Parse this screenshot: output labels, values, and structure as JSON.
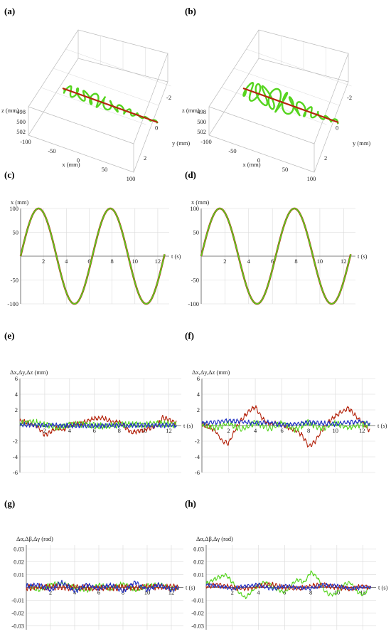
{
  "panel_labels": [
    "(a)",
    "(b)",
    "(c)",
    "(d)",
    "(e)",
    "(f)",
    "(g)",
    "(h)"
  ],
  "colors": {
    "green": "#55d41e",
    "red": "#b5260f",
    "blue": "#1f2fc4",
    "olive": "#8a7a1c",
    "grid": "#d8d8d8",
    "axis": "#555555"
  },
  "chart_data": [
    {
      "panel": "(a)",
      "type": "line",
      "xlabel": "x (mm)",
      "ylabel": "y (mm)",
      "zlabel": "z (mm)",
      "x_ticks": [
        "-100",
        "-50",
        "0",
        "50",
        "100"
      ],
      "y_ticks": [
        "-2",
        "0",
        "2"
      ],
      "z_ticks": [
        "498",
        "500",
        "502"
      ],
      "series": [
        {
          "color": "green",
          "x": [
            -100,
            100
          ],
          "y": [
            0,
            0
          ],
          "z": [
            500,
            500
          ]
        },
        {
          "color": "red",
          "x": [
            -100,
            100
          ],
          "y": [
            0,
            0
          ],
          "z": [
            500,
            500
          ]
        }
      ]
    },
    {
      "panel": "(b)",
      "type": "line",
      "xlabel": "x (mm)",
      "ylabel": "y (mm)",
      "zlabel": "z (mm)",
      "x_ticks": [
        "-100",
        "-50",
        "0",
        "50",
        "100"
      ],
      "y_ticks": [
        "-2",
        "0",
        "2"
      ],
      "z_ticks": [
        "498",
        "500",
        "502"
      ],
      "series": [
        {
          "color": "green",
          "x": [
            -100,
            100
          ],
          "y": [
            0,
            0
          ],
          "z": [
            500,
            500
          ]
        },
        {
          "color": "red",
          "x": [
            -100,
            100
          ],
          "y": [
            0,
            0
          ],
          "z": [
            500,
            500
          ]
        }
      ]
    },
    {
      "panel": "(c)",
      "type": "line",
      "xlabel": "t (s)",
      "ylabel": "x (mm)",
      "xlim": [
        0,
        13
      ],
      "ylim": [
        -100,
        100
      ],
      "x_ticks": [
        2,
        4,
        6,
        8,
        10,
        12
      ],
      "y_ticks": [
        -100,
        -50,
        50,
        100
      ],
      "series": [
        {
          "color": "red",
          "amplitude": 100,
          "period": 6.28
        },
        {
          "color": "green",
          "amplitude": 100,
          "period": 6.28
        }
      ]
    },
    {
      "panel": "(d)",
      "type": "line",
      "xlabel": "t (s)",
      "ylabel": "x (mm)",
      "xlim": [
        0,
        13
      ],
      "ylim": [
        -100,
        100
      ],
      "x_ticks": [
        2,
        4,
        6,
        8,
        10,
        12
      ],
      "y_ticks": [
        -100,
        -50,
        50,
        100
      ],
      "series": [
        {
          "color": "red",
          "amplitude": 100,
          "period": 6.28
        },
        {
          "color": "green",
          "amplitude": 100,
          "period": 6.28
        }
      ]
    },
    {
      "panel": "(e)",
      "type": "line",
      "xlabel": "t (s)",
      "ylabel": "Δx,Δy,Δz (mm)",
      "xlim": [
        0,
        13
      ],
      "ylim": [
        -6,
        6
      ],
      "x_ticks": [
        2,
        4,
        6,
        8,
        10,
        12
      ],
      "y_ticks": [
        -6,
        -4,
        -2,
        2,
        4,
        6
      ],
      "series": [
        {
          "color": "red",
          "t": [
            0,
            0.5,
            1,
            1.5,
            2,
            2.5,
            3,
            3.5,
            4,
            4.5,
            5,
            5.5,
            6,
            6.5,
            7,
            7.5,
            8,
            8.5,
            9,
            9.5,
            10,
            10.5,
            11,
            11.5,
            12,
            12.5
          ],
          "v": [
            0.6,
            0.4,
            0.2,
            -0.3,
            -1.2,
            -0.8,
            -0.3,
            -0.6,
            0.1,
            0.2,
            0.3,
            0.6,
            0.9,
            1.0,
            0.8,
            0.4,
            0.5,
            -0.2,
            -0.9,
            -0.7,
            -0.6,
            -0.3,
            -0.1,
            1.0,
            0.7,
            0.4
          ]
        },
        {
          "color": "green",
          "t": [
            0,
            1,
            2,
            3,
            4,
            5,
            6,
            7,
            8,
            9,
            10,
            11,
            12,
            12.5
          ],
          "v": [
            0.3,
            0.5,
            0.1,
            -0.3,
            0.1,
            0.2,
            0.0,
            -0.1,
            0.1,
            0.2,
            0.1,
            0.3,
            0.2,
            0.1
          ]
        },
        {
          "color": "blue",
          "t": [
            0,
            2,
            4,
            6,
            8,
            10,
            12,
            12.5
          ],
          "v": [
            0.1,
            0.05,
            0.0,
            -0.05,
            0.05,
            0.0,
            0.05,
            0.0
          ]
        }
      ]
    },
    {
      "panel": "(f)",
      "type": "line",
      "xlabel": "t (s)",
      "ylabel": "Δx,Δy,Δz (mm)",
      "xlim": [
        0,
        13
      ],
      "ylim": [
        -6,
        6
      ],
      "x_ticks": [
        2,
        4,
        6,
        8,
        10,
        12
      ],
      "y_ticks": [
        -6,
        -4,
        -2,
        2,
        4,
        6
      ],
      "series": [
        {
          "color": "red",
          "t": [
            0,
            0.5,
            1,
            1.5,
            2,
            2.5,
            3,
            3.5,
            4,
            4.5,
            5,
            5.5,
            6,
            6.5,
            7,
            7.5,
            8,
            8.5,
            9,
            9.5,
            10,
            10.5,
            11,
            11.5,
            12,
            12.5
          ],
          "v": [
            0.1,
            -0.2,
            -0.6,
            -2.0,
            -2.3,
            -0.5,
            0.8,
            1.8,
            2.4,
            1.0,
            0.2,
            0.3,
            0.0,
            -0.3,
            -0.6,
            -1.2,
            -2.7,
            -2.0,
            -0.6,
            0.5,
            1.2,
            1.8,
            2.2,
            1.3,
            0.4,
            -0.5
          ]
        },
        {
          "color": "green",
          "t": [
            0,
            1,
            2,
            3,
            4,
            5,
            6,
            7,
            8,
            9,
            10,
            11,
            12,
            12.5
          ],
          "v": [
            0.2,
            -0.3,
            0.3,
            -0.5,
            0.4,
            -0.4,
            0.3,
            -0.5,
            0.4,
            -0.4,
            0.3,
            -0.3,
            0.2,
            0.0
          ]
        },
        {
          "color": "blue",
          "t": [
            0,
            1,
            2,
            3,
            4,
            5,
            6,
            7,
            8,
            9,
            10,
            11,
            12,
            12.5
          ],
          "v": [
            0.3,
            0.4,
            0.6,
            0.5,
            0.3,
            0.4,
            0.1,
            0.2,
            0.4,
            0.3,
            0.2,
            0.4,
            0.5,
            0.3
          ]
        }
      ]
    },
    {
      "panel": "(g)",
      "type": "line",
      "xlabel": "t (s)",
      "ylabel": "Δα,Δβ,Δγ (rad)",
      "xlim": [
        0,
        13
      ],
      "ylim": [
        -0.033,
        0.033
      ],
      "x_ticks": [
        2,
        4,
        6,
        8,
        10,
        12
      ],
      "y_ticks": [
        -0.03,
        -0.02,
        -0.01,
        0.01,
        0.02,
        0.03
      ],
      "y_tick_labels": [
        "-0.03",
        "-0.02",
        "-0.01",
        "0.01",
        "0.02",
        "0.03"
      ],
      "series": [
        {
          "color": "green",
          "t": [
            0,
            1,
            2,
            3,
            4,
            5,
            6,
            7,
            8,
            9,
            10,
            11,
            12,
            12.5
          ],
          "v": [
            0.001,
            -0.002,
            0.002,
            0.003,
            0.0,
            -0.002,
            0.002,
            -0.001,
            0.003,
            -0.002,
            0.001,
            0.002,
            -0.001,
            0.0
          ]
        },
        {
          "color": "red",
          "t": [
            0,
            2,
            4,
            6,
            8,
            10,
            12,
            12.5
          ],
          "v": [
            0.0,
            0.0005,
            0.0,
            -0.0005,
            0.0,
            0.0005,
            0.0,
            0.0
          ]
        },
        {
          "color": "blue",
          "t": [
            0,
            1,
            2,
            3,
            4,
            5,
            6,
            7,
            8,
            9,
            10,
            11,
            12,
            12.5
          ],
          "v": [
            0.001,
            0.002,
            -0.002,
            0.004,
            -0.003,
            0.002,
            -0.001,
            0.002,
            -0.003,
            0.004,
            -0.002,
            0.002,
            -0.002,
            0.0
          ]
        }
      ]
    },
    {
      "panel": "(h)",
      "type": "line",
      "xlabel": "t (s)",
      "ylabel": "Δα,Δβ,Δγ (rad)",
      "xlim": [
        0,
        13
      ],
      "ylim": [
        -0.033,
        0.033
      ],
      "x_ticks": [
        2,
        4,
        6,
        8,
        10,
        12
      ],
      "y_ticks": [
        -0.03,
        -0.02,
        -0.01,
        0.01,
        0.02,
        0.03
      ],
      "y_tick_labels": [
        "-0.03",
        "-0.02",
        "-0.01",
        "0.01",
        "0.02",
        "0.03"
      ],
      "series": [
        {
          "color": "green",
          "t": [
            0,
            0.5,
            1,
            1.5,
            2,
            2.5,
            3,
            3.5,
            4,
            4.5,
            5,
            5.5,
            6,
            6.5,
            7,
            7.5,
            8,
            8.5,
            9,
            9.5,
            10,
            10.5,
            11,
            11.5,
            12,
            12.5
          ],
          "v": [
            0.003,
            0.006,
            0.008,
            0.01,
            0.004,
            -0.004,
            -0.008,
            -0.003,
            0.002,
            0.004,
            0.001,
            -0.002,
            -0.004,
            0.002,
            0.006,
            0.004,
            0.012,
            0.008,
            -0.002,
            -0.006,
            -0.004,
            0.002,
            0.004,
            -0.003,
            -0.006,
            0.0
          ]
        },
        {
          "color": "red",
          "t": [
            0,
            1,
            2,
            3,
            4,
            5,
            6,
            7,
            8,
            9,
            10,
            11,
            12,
            12.5
          ],
          "v": [
            0.001,
            0.002,
            0.0,
            -0.001,
            0.001,
            0.002,
            0.0,
            -0.001,
            0.001,
            0.002,
            0.0,
            -0.001,
            0.001,
            0.0
          ]
        },
        {
          "color": "blue",
          "t": [
            0,
            1,
            2,
            3,
            4,
            5,
            6,
            7,
            8,
            9,
            10,
            11,
            12,
            12.5
          ],
          "v": [
            0.002,
            0.001,
            -0.001,
            0.001,
            0.002,
            -0.001,
            0.001,
            0.0,
            -0.001,
            0.002,
            0.001,
            -0.001,
            0.0,
            0.0
          ]
        }
      ]
    }
  ]
}
